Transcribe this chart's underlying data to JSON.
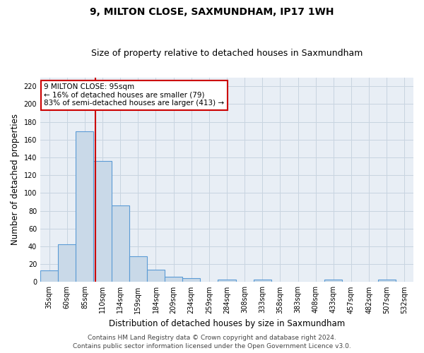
{
  "title": "9, MILTON CLOSE, SAXMUNDHAM, IP17 1WH",
  "subtitle": "Size of property relative to detached houses in Saxmundham",
  "xlabel": "Distribution of detached houses by size in Saxmundham",
  "ylabel": "Number of detached properties",
  "bar_labels": [
    "35sqm",
    "60sqm",
    "85sqm",
    "110sqm",
    "134sqm",
    "159sqm",
    "184sqm",
    "209sqm",
    "234sqm",
    "259sqm",
    "284sqm",
    "308sqm",
    "333sqm",
    "358sqm",
    "383sqm",
    "408sqm",
    "433sqm",
    "457sqm",
    "482sqm",
    "507sqm",
    "532sqm"
  ],
  "bar_values": [
    13,
    42,
    169,
    136,
    86,
    29,
    14,
    6,
    4,
    0,
    3,
    0,
    3,
    0,
    0,
    0,
    3,
    0,
    0,
    3,
    0
  ],
  "bar_color": "#c9d9e8",
  "bar_edge_color": "#5b9bd5",
  "bar_edge_width": 0.8,
  "grid_color": "#c8d4e0",
  "background_color": "#e8eef5",
  "annotation_line1": "9 MILTON CLOSE: 95sqm",
  "annotation_line2": "← 16% of detached houses are smaller (79)",
  "annotation_line3": "83% of semi-detached houses are larger (413) →",
  "annotation_box_color": "#ffffff",
  "annotation_box_edge_color": "#cc0000",
  "red_line_x": 2.6,
  "ylim": [
    0,
    230
  ],
  "yticks": [
    0,
    20,
    40,
    60,
    80,
    100,
    120,
    140,
    160,
    180,
    200,
    220
  ],
  "footer_line1": "Contains HM Land Registry data © Crown copyright and database right 2024.",
  "footer_line2": "Contains public sector information licensed under the Open Government Licence v3.0.",
  "title_fontsize": 10,
  "subtitle_fontsize": 9,
  "xlabel_fontsize": 8.5,
  "ylabel_fontsize": 8.5,
  "tick_fontsize": 7,
  "annotation_fontsize": 7.5,
  "footer_fontsize": 6.5
}
